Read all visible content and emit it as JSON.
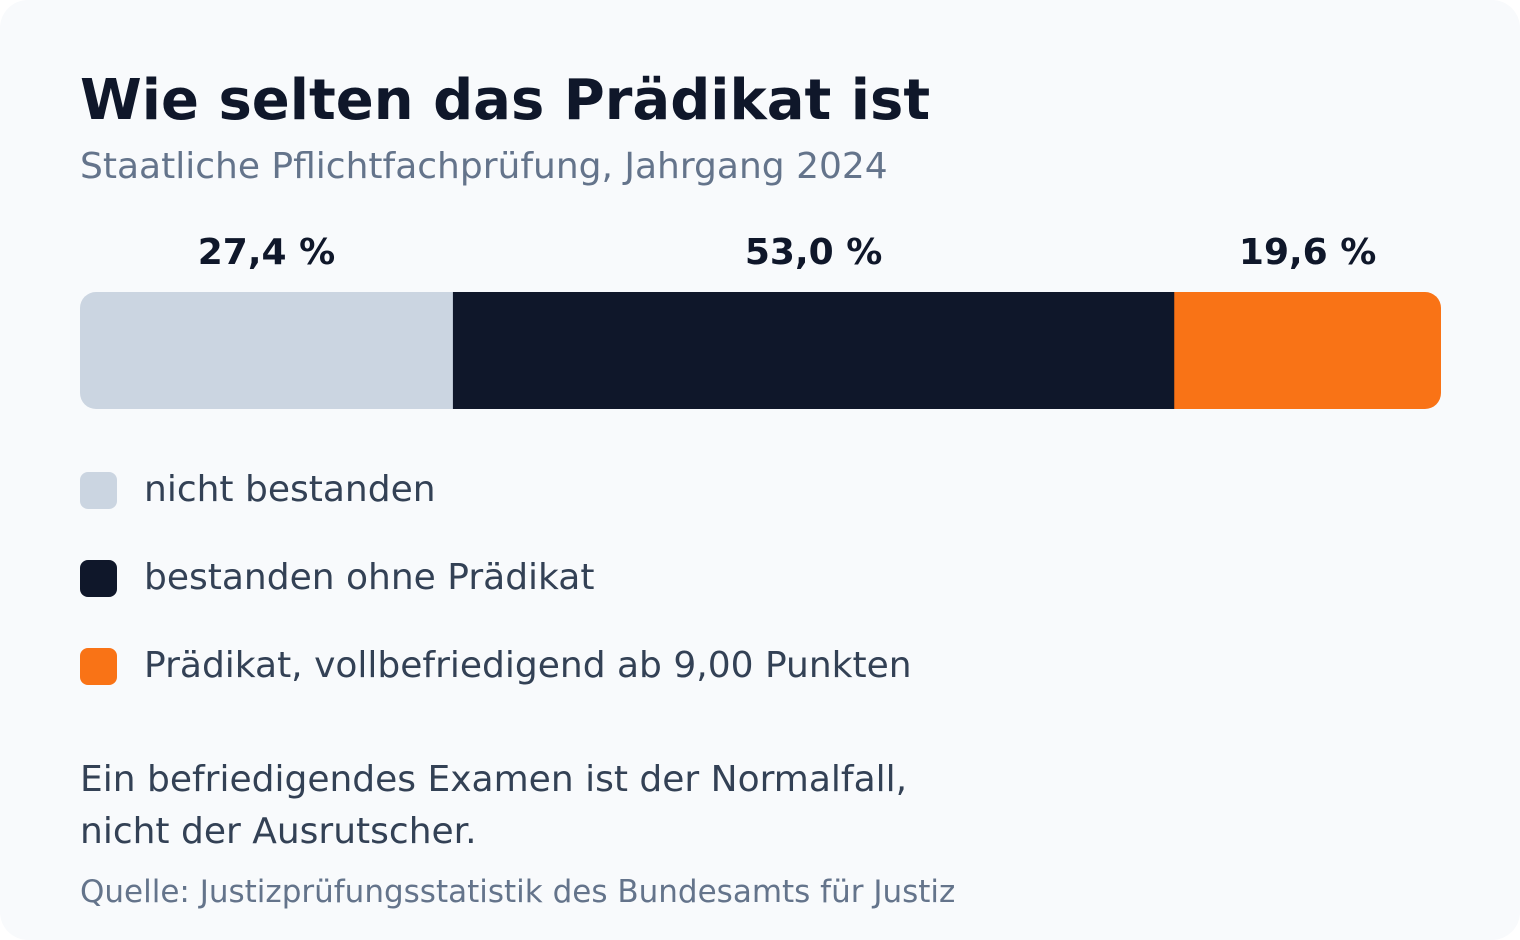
{
  "header": {
    "title": "Wie selten das Prädikat ist",
    "subtitle": "Staatliche Pflichtfachprüfung, Jahrgang 2024"
  },
  "chart_data": {
    "type": "bar",
    "stacked": true,
    "orientation": "horizontal",
    "unit": "%",
    "series": [
      {
        "name": "nicht bestanden",
        "value": 27.4,
        "label": "27,4 %",
        "color": "#cbd5e1"
      },
      {
        "name": "bestanden ohne Prädikat",
        "value": 53.0,
        "label": "53,0 %",
        "color": "#0f172a"
      },
      {
        "name": "Prädikat, vollbefriedigend ab 9,00 Punkten",
        "value": 19.6,
        "label": "19,6 %",
        "color": "#f97316"
      }
    ]
  },
  "note": {
    "lines": [
      "Ein befriedigendes Examen ist der Normalfall,",
      "nicht der Ausrutscher."
    ]
  },
  "source": "Quelle: Justizprüfungsstatistik des Bundesamts für Justiz"
}
